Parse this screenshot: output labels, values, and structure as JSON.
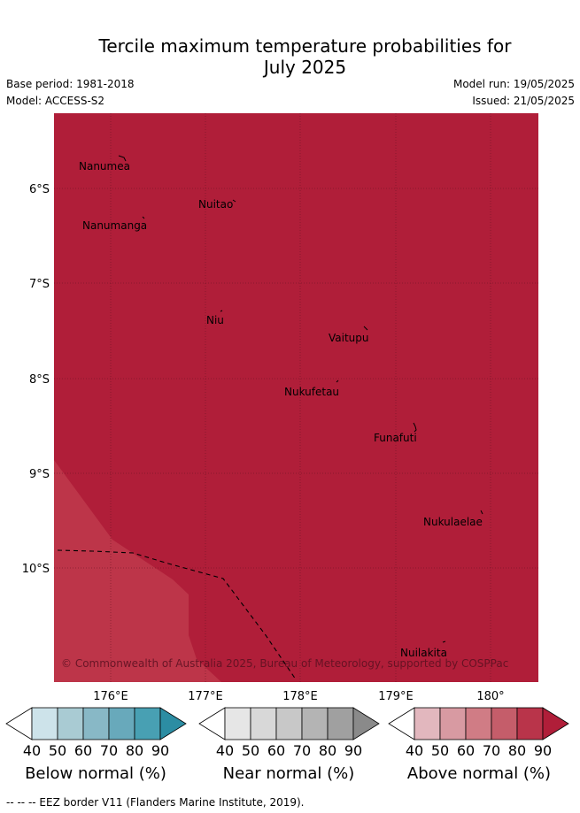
{
  "title_line1": "Tercile maximum temperature probabilities for",
  "title_line2": "July 2025",
  "base_period": "Base period: 1981-2018",
  "model": "Model: ACCESS-S2",
  "model_run": "Model run: 19/05/2025",
  "issued": "Issued: 21/05/2025",
  "lat_labels": [
    "6°S",
    "7°S",
    "8°S",
    "9°S",
    "10°S"
  ],
  "lon_labels": [
    "176°E",
    "177°E",
    "178°E",
    "179°E",
    "180°"
  ],
  "places": [
    "Nanumea",
    "Nuitao",
    "Nanumanga",
    "Niu",
    "Vaitupu",
    "Nukufetau",
    "Funafuti",
    "Nukulaelae",
    "Nuilakita"
  ],
  "copyright": "© Commonwealth of Australia 2025, Bureau of Meteorology, supported by COSPPac",
  "colorbars": [
    {
      "label": "Below normal (%)",
      "ticks": [
        "40",
        "50",
        "60",
        "70",
        "80",
        "90"
      ],
      "colors": [
        "#cde3ea",
        "#a9cbd3",
        "#88b8c6",
        "#68a9bb",
        "#48a0b3",
        "#2c8da3"
      ]
    },
    {
      "label": "Near normal (%)",
      "ticks": [
        "40",
        "50",
        "60",
        "70",
        "80",
        "90"
      ],
      "colors": [
        "#e6e6e6",
        "#d8d8d8",
        "#c8c8c8",
        "#b4b4b4",
        "#a0a0a0",
        "#8a8a8a"
      ]
    },
    {
      "label": "Above normal (%)",
      "ticks": [
        "40",
        "50",
        "60",
        "70",
        "80",
        "90"
      ],
      "colors": [
        "#e2b7be",
        "#d89aa2",
        "#d07c85",
        "#c55d6a",
        "#b9344a",
        "#b01e39"
      ]
    }
  ],
  "footnote": "-- -- -- EEZ border V11 (Flanders Marine Institute, 2019).",
  "colors": {
    "above_90": "#b01e39",
    "above_80": "#bd3549"
  }
}
